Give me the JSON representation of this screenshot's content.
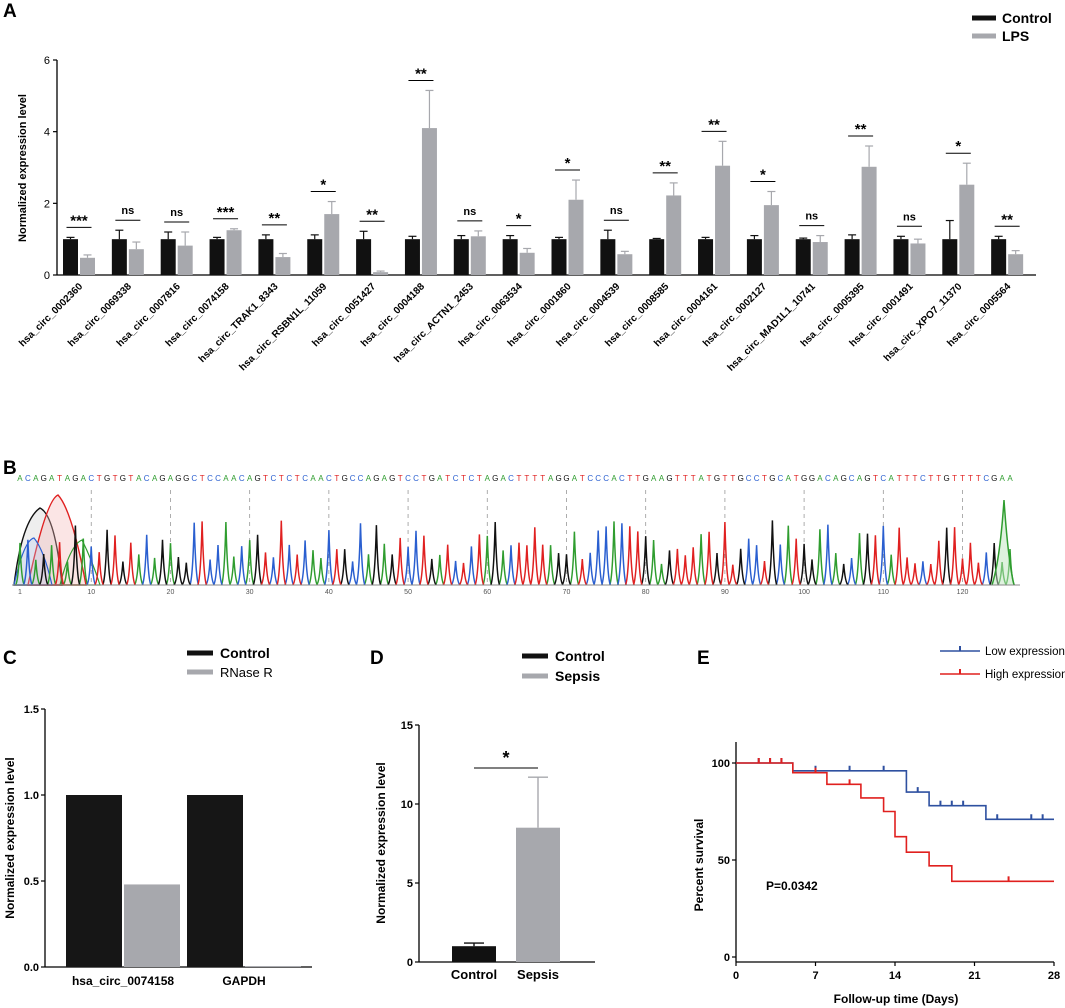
{
  "panel_labels": {
    "A": "A",
    "B": "B",
    "C": "C",
    "D": "D",
    "E": "E"
  },
  "colors": {
    "control": "#111111",
    "treated": "#a7a8ad",
    "low": "#2e50a0",
    "high": "#e0201f",
    "base_A": "#2f9d2f",
    "base_C": "#2a5fd0",
    "base_G": "#111111",
    "base_T": "#e02020"
  },
  "chart_data": [
    {
      "panel": "A",
      "type": "bar",
      "title": "",
      "xlabel": "",
      "ylabel": "Normalized expression level",
      "ylim": [
        0,
        6
      ],
      "yticks": [
        "0",
        "2",
        "4",
        "6"
      ],
      "legend": [
        "Control",
        "LPS"
      ],
      "categories": [
        "hsa_circ_0002360",
        "hsa_circ_0069338",
        "hsa_circ_0007816",
        "hsa_circ_0074158",
        "hsa_circ_TRAK1_8343",
        "hsa_circ_RSBN1L_11059",
        "hsa_circ_0051427",
        "hsa_circ_0004188",
        "hsa_circ_ACTN1_2453",
        "hsa_circ_0063534",
        "hsa_circ_0001860",
        "hsa_circ_0004539",
        "hsa_circ_0008585",
        "hsa_circ_0004161",
        "hsa_circ_0002127",
        "hsa_circ_MAD1L1_10741",
        "hsa_circ_0005395",
        "hsa_circ_0001491",
        "hsa_circ_XPO7_11370",
        "hsa_circ_0005564"
      ],
      "series": [
        {
          "name": "Control",
          "values": [
            1,
            1,
            1,
            1,
            1,
            1,
            1,
            1,
            1,
            1,
            1,
            1,
            1,
            1,
            1,
            1,
            1,
            1,
            1,
            1
          ],
          "errors": [
            0.05,
            0.25,
            0.2,
            0.05,
            0.12,
            0.12,
            0.22,
            0.08,
            0.1,
            0.1,
            0.05,
            0.25,
            0.02,
            0.05,
            0.1,
            0.03,
            0.12,
            0.08,
            0.52,
            0.08
          ]
        },
        {
          "name": "LPS",
          "values": [
            0.48,
            0.72,
            0.82,
            1.25,
            0.5,
            1.7,
            0.08,
            4.1,
            1.08,
            0.62,
            2.1,
            0.58,
            2.22,
            3.05,
            1.95,
            0.92,
            3.02,
            0.88,
            2.52,
            0.58
          ],
          "errors": [
            0.08,
            0.2,
            0.38,
            0.04,
            0.1,
            0.35,
            0.03,
            1.05,
            0.15,
            0.12,
            0.55,
            0.08,
            0.35,
            0.68,
            0.38,
            0.18,
            0.58,
            0.12,
            0.6,
            0.1
          ]
        }
      ],
      "significance": [
        "***",
        "ns",
        "ns",
        "***",
        "**",
        "*",
        "**",
        "**",
        "ns",
        "*",
        "*",
        "ns",
        "**",
        "**",
        "*",
        "ns",
        "**",
        "ns",
        "*",
        "**"
      ]
    },
    {
      "panel": "B",
      "type": "other",
      "description": "Sanger sequencing chromatogram",
      "sequence": "ACAGATAGACTGTGTACAGAGGCTCCAACAGTCTCTCAACTGCCAGAGTCCTGATCTCTAGACTTTTAGGATCCCACTTGAAGTTTATGTTGCCTGCATGGACAGCAGTCATTTCTTGTTTTCGAA",
      "xticks": [
        "1",
        "10",
        "20",
        "30",
        "40",
        "50",
        "60",
        "70",
        "80",
        "90",
        "100",
        "110",
        "120"
      ]
    },
    {
      "panel": "C",
      "type": "bar",
      "ylabel": "Normalized expression level",
      "ylim": [
        0,
        1.5
      ],
      "yticks": [
        "0.0",
        "0.5",
        "1.0",
        "1.5"
      ],
      "categories": [
        "hsa_circ_0074158",
        "GAPDH"
      ],
      "legend": [
        "Control",
        "RNase R"
      ],
      "series": [
        {
          "name": "Control",
          "values": [
            1.0,
            1.0
          ]
        },
        {
          "name": "RNase R",
          "values": [
            0.48,
            0.005
          ]
        }
      ]
    },
    {
      "panel": "D",
      "type": "bar",
      "ylabel": "Normalized expression level",
      "ylim": [
        0,
        15
      ],
      "yticks": [
        "0",
        "5",
        "10",
        "15"
      ],
      "categories": [
        "Control",
        "Sepsis"
      ],
      "legend": [
        "Control",
        "Sepsis"
      ],
      "values": [
        1.0,
        8.5
      ],
      "errors": [
        0.2,
        3.2
      ],
      "significance": "*"
    },
    {
      "panel": "E",
      "type": "line",
      "title": "",
      "xlabel": "Follow-up time (Days)",
      "ylabel": "Percent survival",
      "xlim": [
        0,
        28
      ],
      "ylim": [
        0,
        100
      ],
      "xticks": [
        "0",
        "7",
        "14",
        "21",
        "28"
      ],
      "yticks": [
        "0",
        "50",
        "100"
      ],
      "annotation": "P=0.0342",
      "legend": [
        "Low expression",
        "High expression"
      ],
      "series": [
        {
          "name": "Low expression",
          "steps": [
            [
              0,
              100
            ],
            [
              5,
              96
            ],
            [
              15,
              85
            ],
            [
              17,
              78
            ],
            [
              22,
              71
            ],
            [
              28,
              71
            ]
          ],
          "censors": [
            [
              2,
              100
            ],
            [
              3,
              100
            ],
            [
              4,
              100
            ],
            [
              7,
              96
            ],
            [
              10,
              96
            ],
            [
              13,
              96
            ],
            [
              16,
              85
            ],
            [
              18,
              78
            ],
            [
              19,
              78
            ],
            [
              20,
              78
            ],
            [
              23,
              71
            ],
            [
              26,
              71
            ],
            [
              27,
              71
            ]
          ]
        },
        {
          "name": "High expression",
          "steps": [
            [
              0,
              100
            ],
            [
              5,
              95
            ],
            [
              8,
              89
            ],
            [
              11,
              82
            ],
            [
              13,
              75
            ],
            [
              14,
              62
            ],
            [
              15,
              54
            ],
            [
              17,
              47
            ],
            [
              19,
              39
            ],
            [
              28,
              39
            ]
          ],
          "censors": [
            [
              2,
              100
            ],
            [
              3,
              100
            ],
            [
              4,
              100
            ],
            [
              7,
              95
            ],
            [
              10,
              89
            ],
            [
              24,
              39
            ]
          ]
        }
      ]
    }
  ]
}
